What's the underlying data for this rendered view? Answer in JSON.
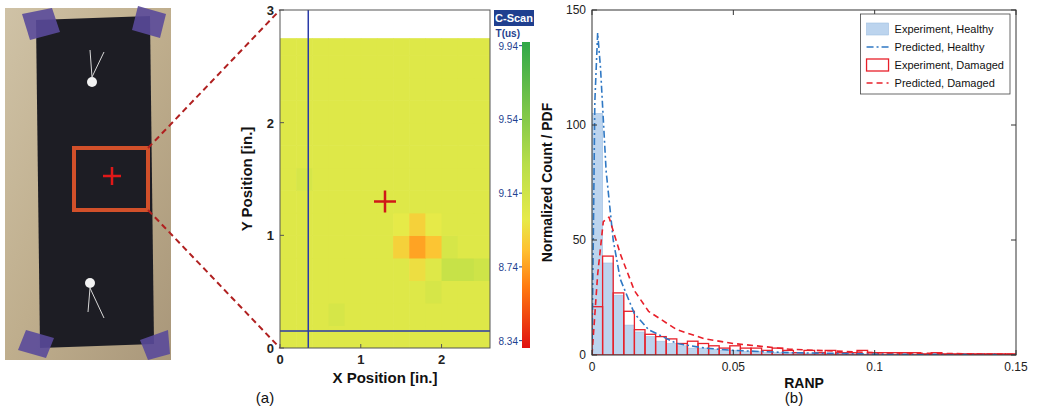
{
  "panel_labels": [
    "(a)",
    "(b)"
  ],
  "chart_data": [
    {
      "type": "heatmap",
      "x_label": "X Position [in.]",
      "y_label": "Y Position [in.]",
      "xlim": [
        0,
        2.6
      ],
      "ylim": [
        0,
        3
      ],
      "xticks": [
        0,
        1,
        2
      ],
      "yticks": [
        0,
        1,
        2,
        3
      ],
      "x_edges": [
        0,
        0.2,
        0.4,
        0.6,
        0.8,
        1,
        1.2,
        1.4,
        1.6,
        1.8,
        2,
        2.2,
        2.4,
        2.6
      ],
      "y_edges": [
        0,
        0.2,
        0.4,
        0.6,
        0.8,
        1,
        1.2,
        1.4,
        1.6,
        1.8,
        2,
        2.2,
        2.4,
        2.6,
        2.75
      ],
      "cells": [
        [
          9.05,
          9.05,
          9.05,
          9.05,
          9.05,
          9.05,
          9.05,
          9.05,
          9.05,
          9.05,
          9.05,
          9.05,
          9.05
        ],
        [
          9.05,
          9.05,
          9.05,
          9.1,
          9.05,
          9.05,
          9.05,
          9.05,
          9.05,
          9.05,
          9.05,
          9.05,
          9.05
        ],
        [
          9.05,
          9.05,
          9.05,
          9.05,
          9.05,
          9.05,
          9.05,
          9.05,
          9.05,
          9.1,
          9.05,
          9.05,
          9.05
        ],
        [
          9.05,
          9.05,
          9.05,
          9.05,
          9.05,
          9.05,
          9.05,
          9.05,
          8.95,
          9.05,
          9.2,
          9.2,
          9.15
        ],
        [
          9.05,
          9.05,
          9.05,
          9.05,
          9.05,
          9.05,
          9.05,
          8.9,
          8.75,
          8.85,
          9.1,
          9.05,
          9.05
        ],
        [
          9.05,
          9.05,
          9.05,
          9.05,
          9.05,
          9.05,
          9.05,
          9.0,
          8.9,
          9.0,
          9.05,
          9.05,
          9.05
        ],
        [
          9.05,
          9.05,
          9.05,
          9.05,
          9.05,
          9.05,
          9.05,
          9.05,
          9.05,
          9.05,
          9.05,
          9.05,
          9.05
        ],
        [
          9.05,
          9.1,
          9.05,
          9.05,
          9.05,
          9.05,
          9.05,
          9.05,
          9.05,
          9.05,
          9.05,
          9.05,
          9.05
        ],
        [
          9.05,
          9.05,
          9.05,
          9.05,
          9.05,
          9.05,
          9.05,
          9.05,
          9.05,
          9.05,
          9.05,
          9.05,
          9.05
        ],
        [
          9.05,
          9.05,
          9.05,
          9.05,
          9.05,
          9.05,
          9.05,
          9.05,
          9.05,
          9.05,
          9.05,
          9.05,
          9.05
        ],
        [
          9.05,
          9.05,
          9.05,
          9.05,
          9.05,
          9.05,
          9.05,
          9.05,
          9.05,
          9.05,
          9.05,
          9.05,
          9.05
        ],
        [
          9.05,
          9.05,
          9.05,
          9.05,
          9.05,
          9.05,
          9.05,
          9.05,
          9.05,
          9.05,
          9.05,
          9.05,
          9.05
        ],
        [
          9.05,
          9.05,
          9.05,
          9.05,
          9.05,
          9.05,
          9.05,
          9.05,
          9.05,
          9.05,
          9.05,
          9.05,
          9.05
        ],
        [
          9.05,
          9.05,
          9.05,
          9.05,
          9.05,
          9.05,
          9.05,
          9.05,
          9.05,
          9.05,
          9.05,
          9.05,
          9.05
        ]
      ],
      "colorbar": {
        "title": "C-Scan",
        "label": "T(us)",
        "range": [
          8.3,
          9.96
        ],
        "ticks": [
          8.34,
          8.74,
          9.14,
          9.54,
          9.94
        ]
      },
      "cursor": {
        "x": 0.35,
        "y": 0.15
      },
      "center_mark": {
        "x": 1.3,
        "y": 1.3
      }
    },
    {
      "type": "histogram",
      "x_label": "RANP",
      "y_label": "Normalized Count / PDF",
      "xlim": [
        0,
        0.15
      ],
      "ylim": [
        0,
        150
      ],
      "xticks": [
        0,
        0.05,
        0.1,
        0.15
      ],
      "yticks": [
        0,
        50,
        100,
        150
      ],
      "legend": "upper right",
      "bins": [
        0,
        0.00375,
        0.0075,
        0.01125,
        0.015,
        0.01875,
        0.0225,
        0.02625,
        0.03,
        0.03375,
        0.0375,
        0.04125,
        0.045,
        0.04875,
        0.0525,
        0.05625,
        0.06,
        0.06375,
        0.0675,
        0.07125,
        0.075,
        0.07875,
        0.0825,
        0.08625,
        0.09,
        0.09375,
        0.0975,
        0.10125,
        0.105,
        0.10875,
        0.1125,
        0.11625,
        0.12,
        0.12375,
        0.1275,
        0.13125,
        0.135,
        0.13875,
        0.1425,
        0.14625,
        0.15
      ],
      "series": [
        {
          "name": "Experiment, Healthy",
          "type": "bar",
          "color": "#bcd4ee",
          "values": [
            105,
            40,
            26,
            13,
            10,
            8,
            6,
            5,
            4,
            3,
            3,
            2.5,
            2,
            2,
            1.5,
            1.5,
            1,
            1,
            1,
            1,
            0.8,
            0.7,
            0.6,
            0.5,
            0.5,
            0.4,
            0.4,
            0.3,
            0.3,
            0.3,
            0.2,
            0.2,
            0.2,
            0.2,
            0.1,
            0.1,
            0.1,
            0.1,
            0.1,
            0.1
          ]
        },
        {
          "name": "Predicted, Healthy",
          "type": "line",
          "color": "#2f78c4",
          "line_style": "dashdot",
          "x": [
            0,
            0.001,
            0.002,
            0.003,
            0.005,
            0.0075,
            0.01,
            0.015,
            0.02,
            0.03,
            0.04,
            0.05,
            0.07,
            0.1,
            0.15
          ],
          "values": [
            0,
            110,
            140,
            125,
            80,
            50,
            33,
            18,
            11,
            5,
            3,
            2,
            1,
            0.4,
            0.1
          ]
        },
        {
          "name": "Experiment, Damaged",
          "type": "bar",
          "color": "#e8202a",
          "values": [
            21,
            43,
            27,
            19,
            11,
            9,
            8,
            7,
            5,
            6,
            5,
            4,
            3,
            4,
            3,
            3,
            2,
            3,
            2,
            1,
            2,
            1,
            2,
            1,
            1,
            2,
            1,
            1,
            1,
            1,
            1,
            0.5,
            1,
            0.5,
            0.5,
            0.5,
            0.5,
            0.5,
            0.5,
            0.5
          ]
        },
        {
          "name": "Predicted, Damaged",
          "type": "line",
          "color": "#e8202a",
          "line_style": "dashed",
          "x": [
            0,
            0.002,
            0.004,
            0.006,
            0.008,
            0.01,
            0.015,
            0.02,
            0.03,
            0.04,
            0.05,
            0.07,
            0.1,
            0.15
          ],
          "values": [
            0,
            35,
            58,
            60,
            52,
            44,
            28,
            19,
            11,
            7,
            5,
            2.5,
            1,
            0.3
          ]
        }
      ]
    }
  ]
}
